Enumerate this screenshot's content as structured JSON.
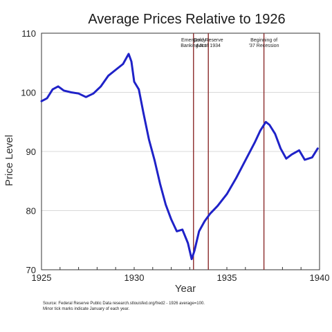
{
  "chart_data": {
    "type": "line",
    "title": "Average Prices Relative to 1926",
    "xlabel": "Year",
    "ylabel": "Price Level",
    "xlim": [
      1925,
      1940
    ],
    "ylim": [
      70,
      110
    ],
    "xticks": [
      "1925",
      "1930",
      "1935",
      "1940"
    ],
    "yticks": [
      "70",
      "80",
      "90",
      "100",
      "110"
    ],
    "grid": true,
    "colors": {
      "series": "#1f22c8",
      "events": "#8b2a2a",
      "grid": "#d8d8d8"
    },
    "series": [
      {
        "x": [
          1925.0,
          1925.3,
          1925.6,
          1925.9,
          1926.2,
          1926.6,
          1927.0,
          1927.4,
          1927.8,
          1928.2,
          1928.6,
          1929.0,
          1929.4,
          1929.7,
          1929.85,
          1930.0,
          1930.25,
          1930.5,
          1930.8,
          1931.1,
          1931.4,
          1931.7,
          1932.0,
          1932.3,
          1932.6,
          1932.9,
          1933.1,
          1933.25,
          1933.5,
          1933.8,
          1934.1,
          1934.5,
          1935.0,
          1935.5,
          1936.0,
          1936.5,
          1936.8,
          1937.1,
          1937.3,
          1937.6,
          1937.9,
          1938.2,
          1938.5,
          1938.9,
          1939.2,
          1939.6,
          1939.9
        ],
        "values": [
          98.5,
          99,
          100.5,
          101,
          100.3,
          100,
          99.8,
          99.2,
          99.8,
          101,
          102.8,
          103.8,
          104.8,
          106.5,
          105.2,
          101.8,
          100.5,
          96.5,
          92,
          88.5,
          84.5,
          81,
          78.5,
          76.5,
          76.8,
          74.5,
          71.8,
          73.2,
          76.5,
          78.2,
          79.5,
          80.8,
          82.8,
          85.5,
          88.5,
          91.5,
          93.5,
          95,
          94.5,
          93,
          90.5,
          88.8,
          89.5,
          90.2,
          88.6,
          89,
          90.5
        ]
      }
    ],
    "events": [
      {
        "x": 1933.2,
        "label": "Emergency Banking Act"
      },
      {
        "x": 1934.0,
        "label": "Gold Reserve Act of 1934"
      },
      {
        "x": 1937.0,
        "label": "Beginning of '37 Recession"
      }
    ],
    "source_note": "Source: Federal Reserve Public Data research.stlouisfed.org/fred2 - 1926 average=100. Minor tick marks indicate January of each year."
  }
}
